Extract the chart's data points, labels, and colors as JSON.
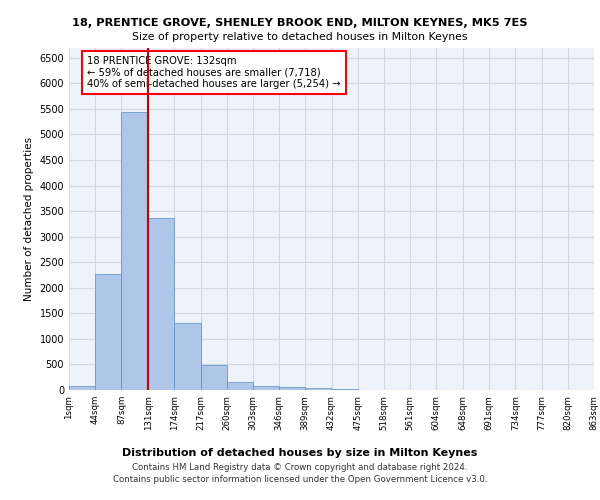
{
  "title1": "18, PRENTICE GROVE, SHENLEY BROOK END, MILTON KEYNES, MK5 7ES",
  "title2": "Size of property relative to detached houses in Milton Keynes",
  "xlabel": "Distribution of detached houses by size in Milton Keynes",
  "ylabel": "Number of detached properties",
  "footer1": "Contains HM Land Registry data © Crown copyright and database right 2024.",
  "footer2": "Contains public sector information licensed under the Open Government Licence v3.0.",
  "bar_edges": [
    1,
    44,
    87,
    131,
    174,
    217,
    260,
    303,
    346,
    389,
    432,
    475,
    518,
    561,
    604,
    648,
    691,
    734,
    777,
    820,
    863
  ],
  "bar_values": [
    75,
    2270,
    5430,
    3370,
    1310,
    480,
    165,
    75,
    55,
    30,
    10,
    5,
    0,
    0,
    0,
    0,
    0,
    0,
    0,
    0
  ],
  "bar_color": "#aec6e8",
  "bar_edgecolor": "#5a8fc2",
  "grid_color": "#d0d8e8",
  "bg_color": "#eef2fa",
  "vline_x": 131,
  "vline_color": "#cc0000",
  "annotation_line1": "18 PRENTICE GROVE: 132sqm",
  "annotation_line2": "← 59% of detached houses are smaller (7,718)",
  "annotation_line3": "40% of semi-detached houses are larger (5,254) →",
  "ylim": [
    0,
    6700
  ],
  "yticks": [
    0,
    500,
    1000,
    1500,
    2000,
    2500,
    3000,
    3500,
    4000,
    4500,
    5000,
    5500,
    6000,
    6500
  ]
}
